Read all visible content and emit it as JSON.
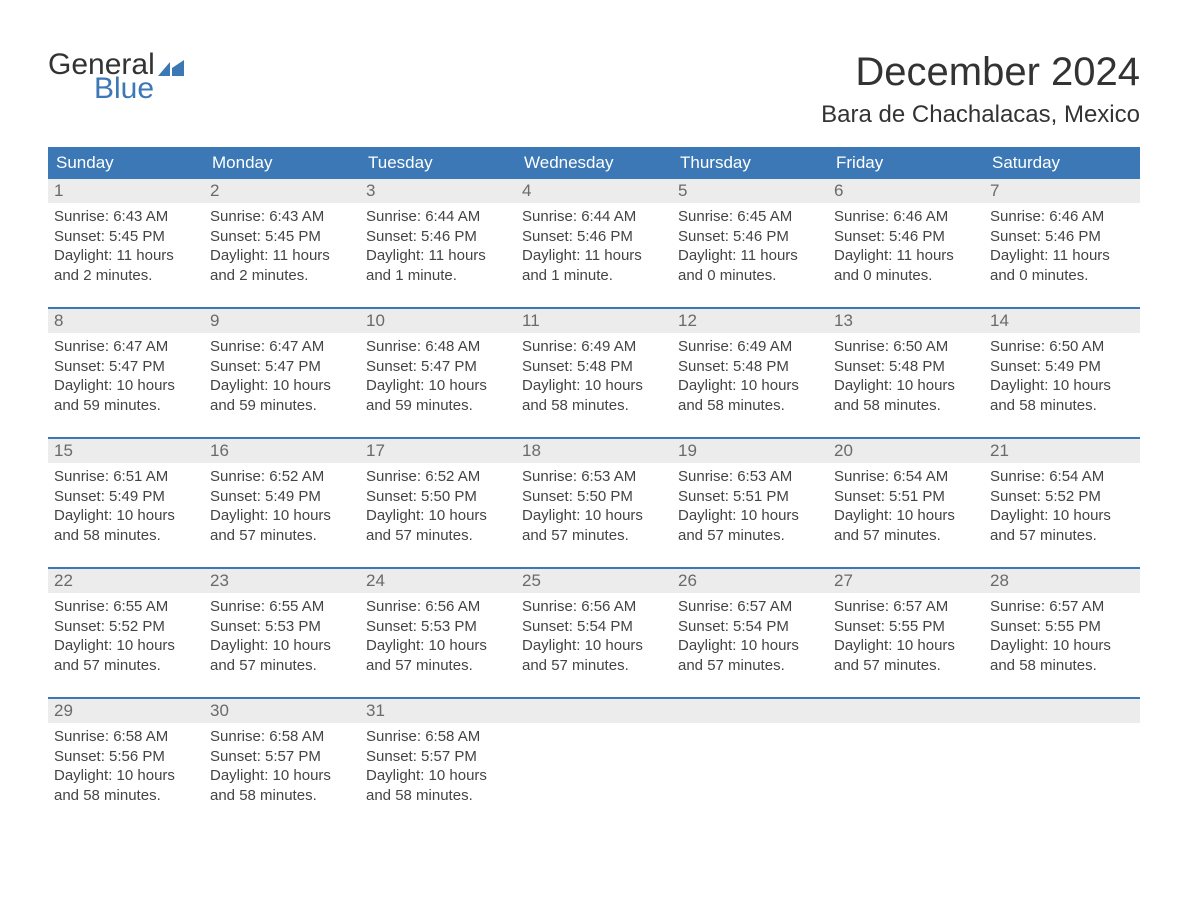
{
  "logo": {
    "word1": "General",
    "word2": "Blue"
  },
  "title": "December 2024",
  "location": "Bara de Chachalacas, Mexico",
  "header_bg": "#3b78b5",
  "header_fg": "#ffffff",
  "daynum_bg": "#ececec",
  "border_color": "#3b78b5",
  "text_color": "#444444",
  "days_of_week": [
    "Sunday",
    "Monday",
    "Tuesday",
    "Wednesday",
    "Thursday",
    "Friday",
    "Saturday"
  ],
  "weeks": [
    [
      {
        "n": "1",
        "sunrise": "Sunrise: 6:43 AM",
        "sunset": "Sunset: 5:45 PM",
        "day1": "Daylight: 11 hours",
        "day2": "and 2 minutes."
      },
      {
        "n": "2",
        "sunrise": "Sunrise: 6:43 AM",
        "sunset": "Sunset: 5:45 PM",
        "day1": "Daylight: 11 hours",
        "day2": "and 2 minutes."
      },
      {
        "n": "3",
        "sunrise": "Sunrise: 6:44 AM",
        "sunset": "Sunset: 5:46 PM",
        "day1": "Daylight: 11 hours",
        "day2": "and 1 minute."
      },
      {
        "n": "4",
        "sunrise": "Sunrise: 6:44 AM",
        "sunset": "Sunset: 5:46 PM",
        "day1": "Daylight: 11 hours",
        "day2": "and 1 minute."
      },
      {
        "n": "5",
        "sunrise": "Sunrise: 6:45 AM",
        "sunset": "Sunset: 5:46 PM",
        "day1": "Daylight: 11 hours",
        "day2": "and 0 minutes."
      },
      {
        "n": "6",
        "sunrise": "Sunrise: 6:46 AM",
        "sunset": "Sunset: 5:46 PM",
        "day1": "Daylight: 11 hours",
        "day2": "and 0 minutes."
      },
      {
        "n": "7",
        "sunrise": "Sunrise: 6:46 AM",
        "sunset": "Sunset: 5:46 PM",
        "day1": "Daylight: 11 hours",
        "day2": "and 0 minutes."
      }
    ],
    [
      {
        "n": "8",
        "sunrise": "Sunrise: 6:47 AM",
        "sunset": "Sunset: 5:47 PM",
        "day1": "Daylight: 10 hours",
        "day2": "and 59 minutes."
      },
      {
        "n": "9",
        "sunrise": "Sunrise: 6:47 AM",
        "sunset": "Sunset: 5:47 PM",
        "day1": "Daylight: 10 hours",
        "day2": "and 59 minutes."
      },
      {
        "n": "10",
        "sunrise": "Sunrise: 6:48 AM",
        "sunset": "Sunset: 5:47 PM",
        "day1": "Daylight: 10 hours",
        "day2": "and 59 minutes."
      },
      {
        "n": "11",
        "sunrise": "Sunrise: 6:49 AM",
        "sunset": "Sunset: 5:48 PM",
        "day1": "Daylight: 10 hours",
        "day2": "and 58 minutes."
      },
      {
        "n": "12",
        "sunrise": "Sunrise: 6:49 AM",
        "sunset": "Sunset: 5:48 PM",
        "day1": "Daylight: 10 hours",
        "day2": "and 58 minutes."
      },
      {
        "n": "13",
        "sunrise": "Sunrise: 6:50 AM",
        "sunset": "Sunset: 5:48 PM",
        "day1": "Daylight: 10 hours",
        "day2": "and 58 minutes."
      },
      {
        "n": "14",
        "sunrise": "Sunrise: 6:50 AM",
        "sunset": "Sunset: 5:49 PM",
        "day1": "Daylight: 10 hours",
        "day2": "and 58 minutes."
      }
    ],
    [
      {
        "n": "15",
        "sunrise": "Sunrise: 6:51 AM",
        "sunset": "Sunset: 5:49 PM",
        "day1": "Daylight: 10 hours",
        "day2": "and 58 minutes."
      },
      {
        "n": "16",
        "sunrise": "Sunrise: 6:52 AM",
        "sunset": "Sunset: 5:49 PM",
        "day1": "Daylight: 10 hours",
        "day2": "and 57 minutes."
      },
      {
        "n": "17",
        "sunrise": "Sunrise: 6:52 AM",
        "sunset": "Sunset: 5:50 PM",
        "day1": "Daylight: 10 hours",
        "day2": "and 57 minutes."
      },
      {
        "n": "18",
        "sunrise": "Sunrise: 6:53 AM",
        "sunset": "Sunset: 5:50 PM",
        "day1": "Daylight: 10 hours",
        "day2": "and 57 minutes."
      },
      {
        "n": "19",
        "sunrise": "Sunrise: 6:53 AM",
        "sunset": "Sunset: 5:51 PM",
        "day1": "Daylight: 10 hours",
        "day2": "and 57 minutes."
      },
      {
        "n": "20",
        "sunrise": "Sunrise: 6:54 AM",
        "sunset": "Sunset: 5:51 PM",
        "day1": "Daylight: 10 hours",
        "day2": "and 57 minutes."
      },
      {
        "n": "21",
        "sunrise": "Sunrise: 6:54 AM",
        "sunset": "Sunset: 5:52 PM",
        "day1": "Daylight: 10 hours",
        "day2": "and 57 minutes."
      }
    ],
    [
      {
        "n": "22",
        "sunrise": "Sunrise: 6:55 AM",
        "sunset": "Sunset: 5:52 PM",
        "day1": "Daylight: 10 hours",
        "day2": "and 57 minutes."
      },
      {
        "n": "23",
        "sunrise": "Sunrise: 6:55 AM",
        "sunset": "Sunset: 5:53 PM",
        "day1": "Daylight: 10 hours",
        "day2": "and 57 minutes."
      },
      {
        "n": "24",
        "sunrise": "Sunrise: 6:56 AM",
        "sunset": "Sunset: 5:53 PM",
        "day1": "Daylight: 10 hours",
        "day2": "and 57 minutes."
      },
      {
        "n": "25",
        "sunrise": "Sunrise: 6:56 AM",
        "sunset": "Sunset: 5:54 PM",
        "day1": "Daylight: 10 hours",
        "day2": "and 57 minutes."
      },
      {
        "n": "26",
        "sunrise": "Sunrise: 6:57 AM",
        "sunset": "Sunset: 5:54 PM",
        "day1": "Daylight: 10 hours",
        "day2": "and 57 minutes."
      },
      {
        "n": "27",
        "sunrise": "Sunrise: 6:57 AM",
        "sunset": "Sunset: 5:55 PM",
        "day1": "Daylight: 10 hours",
        "day2": "and 57 minutes."
      },
      {
        "n": "28",
        "sunrise": "Sunrise: 6:57 AM",
        "sunset": "Sunset: 5:55 PM",
        "day1": "Daylight: 10 hours",
        "day2": "and 58 minutes."
      }
    ],
    [
      {
        "n": "29",
        "sunrise": "Sunrise: 6:58 AM",
        "sunset": "Sunset: 5:56 PM",
        "day1": "Daylight: 10 hours",
        "day2": "and 58 minutes."
      },
      {
        "n": "30",
        "sunrise": "Sunrise: 6:58 AM",
        "sunset": "Sunset: 5:57 PM",
        "day1": "Daylight: 10 hours",
        "day2": "and 58 minutes."
      },
      {
        "n": "31",
        "sunrise": "Sunrise: 6:58 AM",
        "sunset": "Sunset: 5:57 PM",
        "day1": "Daylight: 10 hours",
        "day2": "and 58 minutes."
      },
      null,
      null,
      null,
      null
    ]
  ]
}
